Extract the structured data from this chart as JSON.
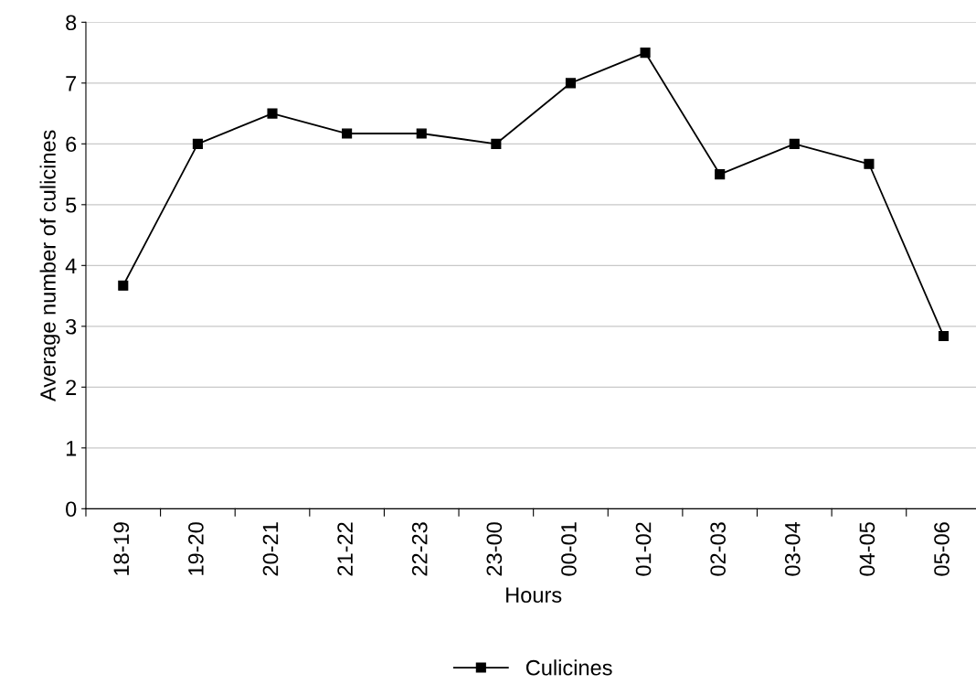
{
  "chart_data": {
    "type": "line",
    "xlabel": "Hours",
    "ylabel": "Average number of culicines",
    "categories": [
      "18-19",
      "19-20",
      "20-21",
      "21-22",
      "22-23",
      "23-00",
      "00-01",
      "01-02",
      "02-03",
      "03-04",
      "04-05",
      "05-06"
    ],
    "series": [
      {
        "name": "Culicines",
        "color": "#000000",
        "values": [
          3.67,
          6.0,
          6.5,
          6.17,
          6.17,
          6.0,
          7.0,
          7.5,
          5.5,
          6.0,
          5.67,
          2.84
        ]
      }
    ],
    "ylim": [
      0,
      8
    ],
    "yticks": [
      0,
      1,
      2,
      3,
      4,
      5,
      6,
      7,
      8
    ],
    "grid": "y",
    "legend": "bottom",
    "marker": "square",
    "line_style": "solid"
  }
}
